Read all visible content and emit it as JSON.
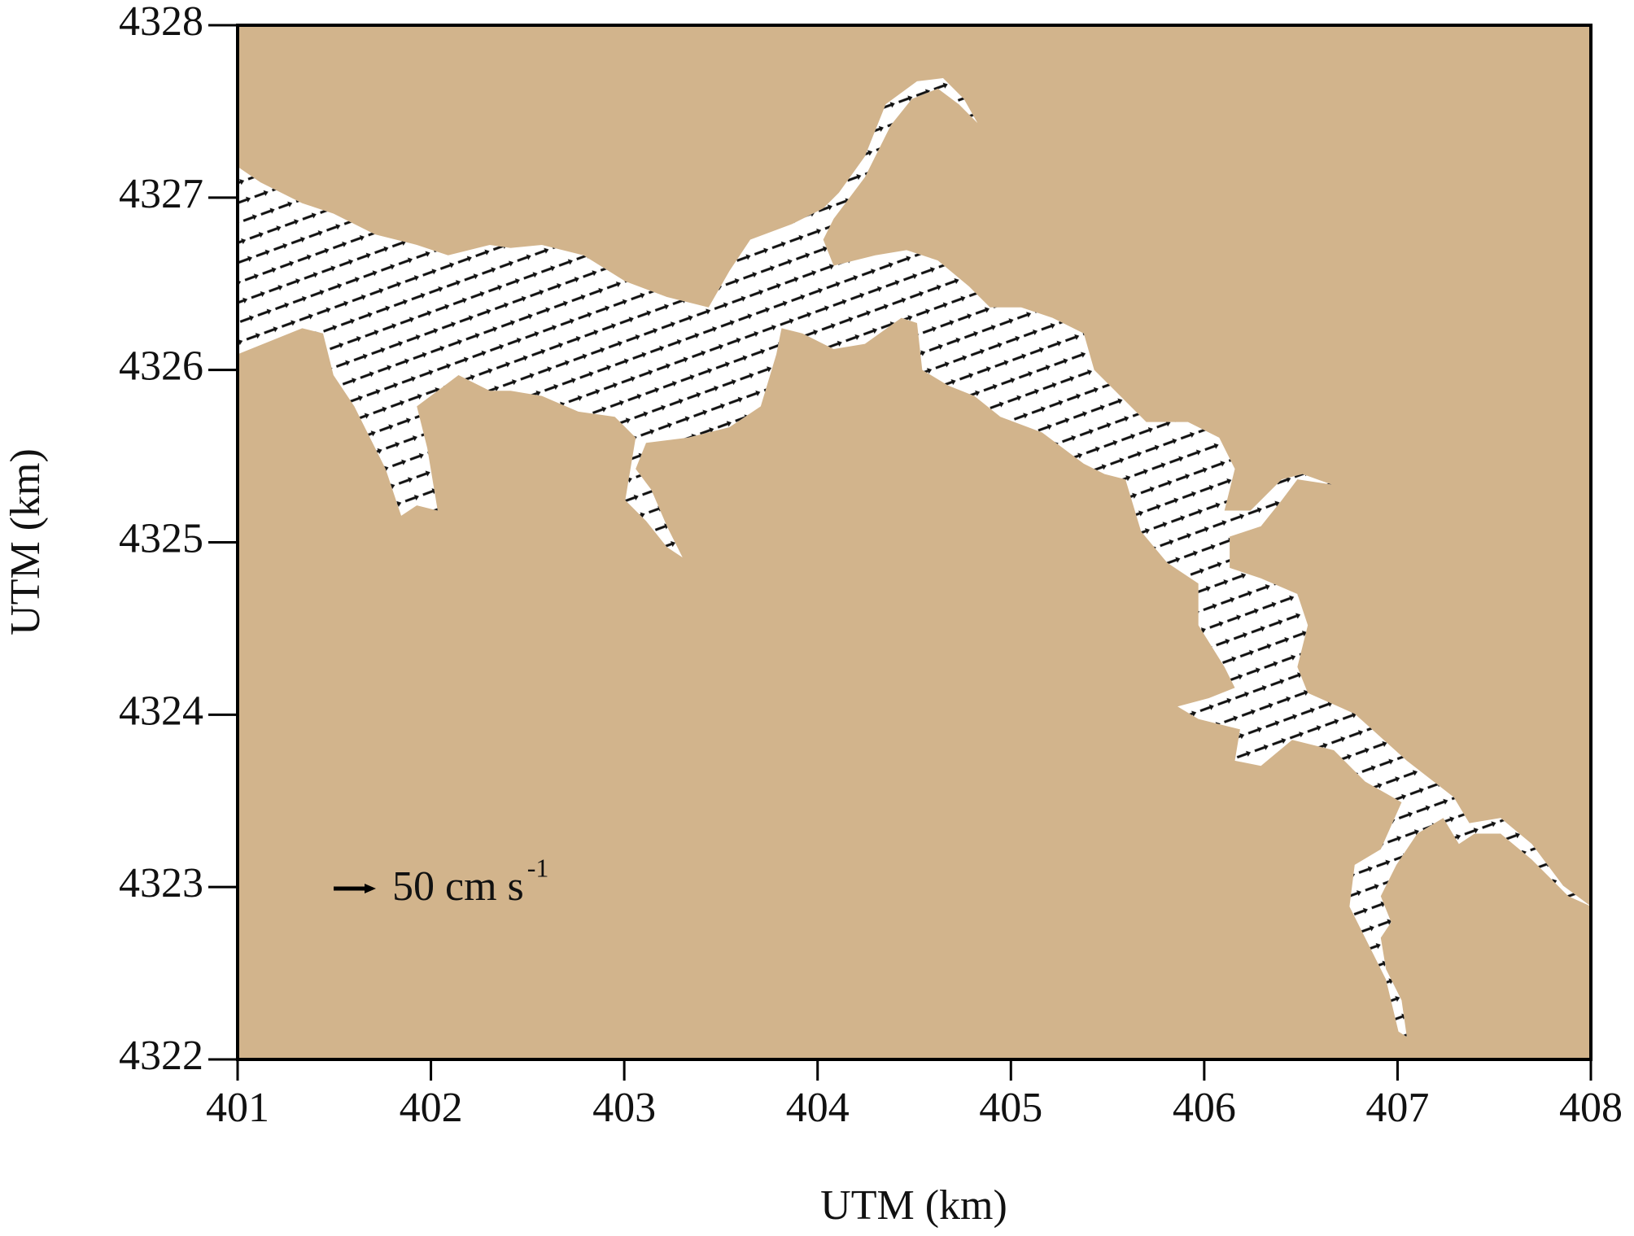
{
  "chart_data": {
    "type": "vector-field",
    "background_color": "#d2b48c",
    "water_color": "#ffffff",
    "xlabel": "UTM (km)",
    "ylabel": "UTM (km)",
    "xlim": [
      401,
      408
    ],
    "ylim": [
      4322,
      4328
    ],
    "xticks": [
      401,
      402,
      403,
      404,
      405,
      406,
      407,
      408
    ],
    "yticks": [
      4322,
      4323,
      4324,
      4325,
      4326,
      4327,
      4328
    ],
    "reference_arrow": {
      "label": "50 cm s",
      "superscript": "-1"
    }
  }
}
